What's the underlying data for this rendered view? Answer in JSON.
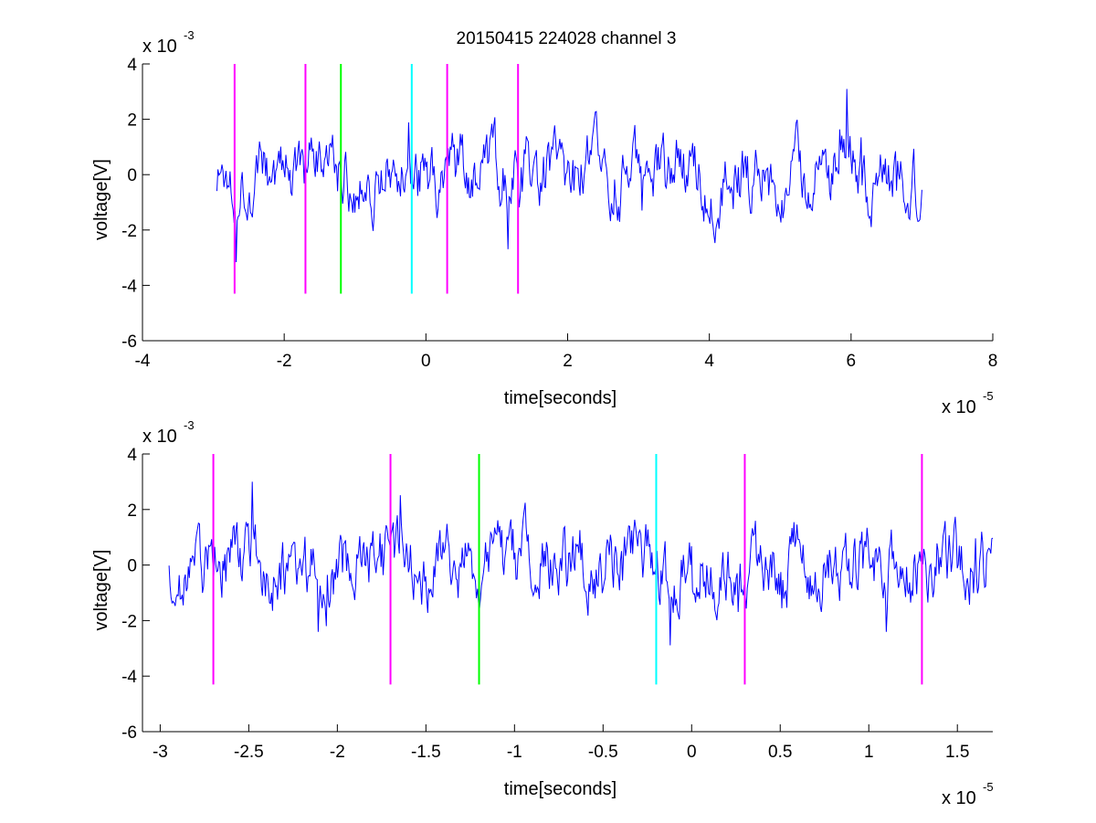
{
  "figure": {
    "title": "20150415 224028 channel 3",
    "background": "#ffffff"
  },
  "chart_data": [
    {
      "type": "line",
      "title": "20150415 224028 channel 3",
      "xlabel": "time[seconds]",
      "ylabel": "voltage[V]",
      "x_multiplier": "x 10",
      "x_exponent": "-5",
      "y_multiplier": "x 10",
      "y_exponent": "-3",
      "xlim": [
        -4,
        8
      ],
      "ylim": [
        -6,
        4
      ],
      "xticks": [
        -4,
        -2,
        0,
        2,
        4,
        6,
        8
      ],
      "xtick_labels": [
        "-4",
        "-2",
        "0",
        "2",
        "4",
        "6",
        "8"
      ],
      "yticks": [
        -6,
        -4,
        -2,
        0,
        2,
        4
      ],
      "ytick_labels": [
        "-6",
        "-4",
        "-2",
        "0",
        "2",
        "4"
      ],
      "grid": false,
      "signal": {
        "color": "#0000ff",
        "x_start": -2.95,
        "x_end": 7.0,
        "approx_amplitude": 1.2,
        "y_min": -3.7,
        "y_max": 3.5
      },
      "markers": [
        {
          "x": -2.7,
          "y_bottom": -4.3,
          "y_top": 4.0,
          "color": "#ff00ff"
        },
        {
          "x": -1.7,
          "y_bottom": -4.3,
          "y_top": 4.0,
          "color": "#ff00ff"
        },
        {
          "x": -1.2,
          "y_bottom": -4.3,
          "y_top": 4.0,
          "color": "#00ff00"
        },
        {
          "x": -0.2,
          "y_bottom": -4.3,
          "y_top": 4.0,
          "color": "#00ffff"
        },
        {
          "x": 0.3,
          "y_bottom": -4.3,
          "y_top": 4.0,
          "color": "#ff00ff"
        },
        {
          "x": 1.3,
          "y_bottom": -4.3,
          "y_top": 4.0,
          "color": "#ff00ff"
        }
      ]
    },
    {
      "type": "line",
      "title": "",
      "xlabel": "time[seconds]",
      "ylabel": "voltage[V]",
      "x_multiplier": "x 10",
      "x_exponent": "-5",
      "y_multiplier": "x 10",
      "y_exponent": "-3",
      "xlim": [
        -3.1,
        1.7
      ],
      "ylim": [
        -6,
        4
      ],
      "xticks": [
        -3,
        -2.5,
        -2,
        -1.5,
        -1,
        -0.5,
        0,
        0.5,
        1,
        1.5
      ],
      "xtick_labels": [
        "-3",
        "-2.5",
        "-2",
        "-1.5",
        "-1",
        "-0.5",
        "0",
        "0.5",
        "1",
        "1.5"
      ],
      "yticks": [
        -6,
        -4,
        -2,
        0,
        2,
        4
      ],
      "ytick_labels": [
        "-6",
        "-4",
        "-2",
        "0",
        "2",
        "4"
      ],
      "grid": false,
      "signal": {
        "color": "#0000ff",
        "x_start": -2.95,
        "x_end": 1.7,
        "approx_amplitude": 1.2,
        "y_min": -3.8,
        "y_max": 3.0
      },
      "markers": [
        {
          "x": -2.7,
          "y_bottom": -4.3,
          "y_top": 4.0,
          "color": "#ff00ff"
        },
        {
          "x": -1.7,
          "y_bottom": -4.3,
          "y_top": 4.0,
          "color": "#ff00ff"
        },
        {
          "x": -1.2,
          "y_bottom": -4.3,
          "y_top": 4.0,
          "color": "#00ff00"
        },
        {
          "x": -0.2,
          "y_bottom": -4.3,
          "y_top": 4.0,
          "color": "#00ffff"
        },
        {
          "x": 0.3,
          "y_bottom": -4.3,
          "y_top": 4.0,
          "color": "#ff00ff"
        },
        {
          "x": 1.3,
          "y_bottom": -4.3,
          "y_top": 4.0,
          "color": "#ff00ff"
        }
      ]
    }
  ]
}
